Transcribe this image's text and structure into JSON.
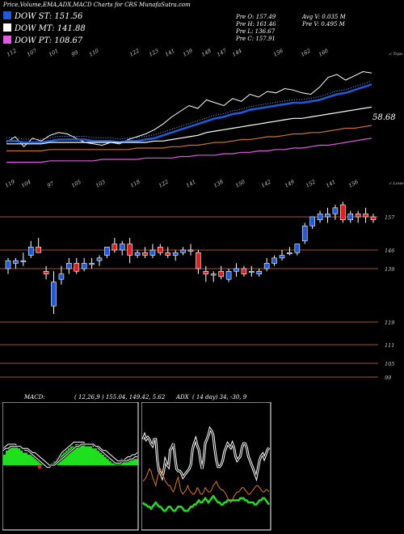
{
  "header": {
    "title": "Price,Volume,EMA,ADX,MACD Charts for CR",
    "site": "S MunafaSutra.com"
  },
  "legend": [
    {
      "label": "DOW ST: 151.56",
      "color": "#1f5bd6"
    },
    {
      "label": "DOW MT: 141.88",
      "color": "#ffffff"
    },
    {
      "label": "DOW PT: 108.67",
      "color": "#e05be0"
    }
  ],
  "ohlc": {
    "open": "Pre   O: 157.49",
    "high": "Pre   H: 161.46",
    "low": "Pre   L: 136.67",
    "close": "Pre   C: 157.91",
    "avg_volume": "Avg V: 0.035 M",
    "prev_volume": "Pre   V: 0.495 M"
  },
  "ema_panel": {
    "top_labels": [
      "112",
      "107",
      "101",
      "99",
      "110",
      "122",
      "123",
      "141",
      "139",
      "148",
      "147",
      "144",
      "156",
      "162",
      "160"
    ],
    "bottom_labels": [
      "119",
      "104",
      "97",
      "105",
      "103",
      "118",
      "122",
      "141",
      "138",
      "150",
      "142",
      "149",
      "152",
      "141",
      "156"
    ],
    "value_label": "58.68",
    "corner_top": "c Tops",
    "corner_bottom": "c Lows"
  },
  "price_panel": {
    "level_labels": [
      "157",
      "146",
      "139",
      "119",
      "111",
      "105",
      "99"
    ]
  },
  "macd": {
    "label": "MACD:",
    "params": "( 12,26,9 ) 155.04,  149.42, 5.62"
  },
  "adx": {
    "label": "ADX",
    "params": "( 14  day) 34,  -30,  9"
  },
  "chart_data": [
    {
      "type": "line",
      "title": "EMA",
      "series": [
        {
          "name": "price",
          "color": "#ffffff",
          "values": [
            134,
            138,
            131,
            137,
            135,
            139,
            141,
            140,
            137,
            134,
            133,
            132,
            134,
            133,
            136,
            138,
            140,
            143,
            147,
            152,
            156,
            160,
            158,
            164,
            162,
            160,
            165,
            163,
            168,
            166,
            170,
            169,
            172,
            171,
            169,
            168,
            173,
            180,
            182,
            178,
            181,
            184,
            183
          ]
        },
        {
          "name": "EMA short",
          "color": "#1f5bd6",
          "values": [
            135,
            135,
            134,
            134,
            134,
            135,
            136,
            136,
            136,
            136,
            135,
            135,
            135,
            134,
            135,
            135,
            136,
            137,
            139,
            141,
            143,
            145,
            147,
            149,
            151,
            152,
            154,
            155,
            157,
            158,
            159,
            160,
            161,
            162,
            162,
            163,
            164,
            166,
            168,
            169,
            171,
            173,
            175
          ]
        },
        {
          "name": "EMA mid",
          "color": "#ffffff",
          "values": [
            133,
            133,
            133,
            133,
            133,
            134,
            134,
            134,
            134,
            134,
            134,
            134,
            134,
            134,
            134,
            134,
            134,
            135,
            135,
            136,
            137,
            138,
            139,
            141,
            142,
            143,
            144,
            145,
            146,
            147,
            148,
            149,
            150,
            151,
            151,
            152,
            153,
            154,
            155,
            156,
            157,
            158,
            159
          ]
        },
        {
          "name": "EMA long",
          "color": "#c8703a",
          "values": [
            128,
            128,
            128,
            128,
            128,
            129,
            129,
            129,
            129,
            129,
            129,
            129,
            129,
            129,
            129,
            130,
            130,
            130,
            130,
            131,
            131,
            132,
            132,
            133,
            134,
            134,
            135,
            136,
            136,
            137,
            138,
            138,
            139,
            140,
            140,
            141,
            141,
            142,
            143,
            144,
            144,
            145,
            146
          ]
        },
        {
          "name": "EMA longest",
          "color": "#e05be0",
          "values": [
            120,
            120,
            120,
            120,
            120,
            121,
            121,
            121,
            121,
            121,
            121,
            122,
            122,
            122,
            122,
            122,
            123,
            123,
            123,
            123,
            124,
            124,
            125,
            125,
            125,
            126,
            126,
            127,
            127,
            128,
            128,
            129,
            129,
            130,
            130,
            131,
            132,
            132,
            133,
            134,
            135,
            136,
            137
          ]
        }
      ]
    },
    {
      "type": "candlestick",
      "title": "Price",
      "ylim": [
        97,
        166
      ],
      "candles": [
        {
          "o": 139,
          "h": 143,
          "l": 137,
          "c": 142
        },
        {
          "o": 141,
          "h": 143,
          "l": 139,
          "c": 142
        },
        {
          "o": 142,
          "h": 145,
          "l": 140,
          "c": 142
        },
        {
          "o": 144,
          "h": 149,
          "l": 143,
          "c": 147
        },
        {
          "o": 147,
          "h": 150,
          "l": 145,
          "c": 145
        },
        {
          "o": 138,
          "h": 140,
          "l": 135,
          "c": 137
        },
        {
          "o": 125,
          "h": 138,
          "l": 122,
          "c": 134
        },
        {
          "o": 135,
          "h": 140,
          "l": 133,
          "c": 137
        },
        {
          "o": 139,
          "h": 143,
          "l": 137,
          "c": 141
        },
        {
          "o": 141,
          "h": 143,
          "l": 137,
          "c": 138
        },
        {
          "o": 139,
          "h": 143,
          "l": 138,
          "c": 141
        },
        {
          "o": 141,
          "h": 143,
          "l": 139,
          "c": 141
        },
        {
          "o": 142,
          "h": 144,
          "l": 140,
          "c": 143
        },
        {
          "o": 144,
          "h": 147,
          "l": 143,
          "c": 147
        },
        {
          "o": 148,
          "h": 150,
          "l": 145,
          "c": 146
        },
        {
          "o": 146,
          "h": 149,
          "l": 144,
          "c": 148
        },
        {
          "o": 148,
          "h": 150,
          "l": 141,
          "c": 144
        },
        {
          "o": 144,
          "h": 146,
          "l": 143,
          "c": 145
        },
        {
          "o": 145,
          "h": 147,
          "l": 143,
          "c": 144
        },
        {
          "o": 144,
          "h": 148,
          "l": 143,
          "c": 146
        },
        {
          "o": 147,
          "h": 148,
          "l": 144,
          "c": 145
        },
        {
          "o": 145,
          "h": 147,
          "l": 143,
          "c": 144
        },
        {
          "o": 144,
          "h": 146,
          "l": 142,
          "c": 145
        },
        {
          "o": 145,
          "h": 147,
          "l": 144,
          "c": 146
        },
        {
          "o": 146,
          "h": 148,
          "l": 144,
          "c": 146
        },
        {
          "o": 145,
          "h": 146,
          "l": 137,
          "c": 139
        },
        {
          "o": 138,
          "h": 140,
          "l": 134,
          "c": 137
        },
        {
          "o": 137,
          "h": 138,
          "l": 134,
          "c": 137
        },
        {
          "o": 138,
          "h": 140,
          "l": 135,
          "c": 136
        },
        {
          "o": 135,
          "h": 139,
          "l": 134,
          "c": 138
        },
        {
          "o": 138,
          "h": 141,
          "l": 136,
          "c": 139
        },
        {
          "o": 139,
          "h": 140,
          "l": 136,
          "c": 137
        },
        {
          "o": 138,
          "h": 140,
          "l": 136,
          "c": 138
        },
        {
          "o": 137,
          "h": 139,
          "l": 136,
          "c": 138
        },
        {
          "o": 139,
          "h": 143,
          "l": 138,
          "c": 141
        },
        {
          "o": 141,
          "h": 144,
          "l": 140,
          "c": 143
        },
        {
          "o": 143,
          "h": 146,
          "l": 142,
          "c": 144
        },
        {
          "o": 145,
          "h": 147,
          "l": 144,
          "c": 145
        },
        {
          "o": 145,
          "h": 148,
          "l": 144,
          "c": 148
        },
        {
          "o": 149,
          "h": 155,
          "l": 148,
          "c": 154
        },
        {
          "o": 154,
          "h": 157,
          "l": 153,
          "c": 157
        },
        {
          "o": 156,
          "h": 159,
          "l": 155,
          "c": 158
        },
        {
          "o": 157,
          "h": 160,
          "l": 155,
          "c": 158
        },
        {
          "o": 158,
          "h": 161,
          "l": 156,
          "c": 160
        },
        {
          "o": 161,
          "h": 162,
          "l": 155,
          "c": 156
        },
        {
          "o": 156,
          "h": 159,
          "l": 155,
          "c": 158
        },
        {
          "o": 158,
          "h": 159,
          "l": 155,
          "c": 157
        },
        {
          "o": 158,
          "h": 160,
          "l": 155,
          "c": 157
        },
        {
          "o": 157,
          "h": 158,
          "l": 155,
          "c": 156
        }
      ],
      "levels": [
        157,
        146,
        139,
        119,
        111,
        105,
        99
      ]
    },
    {
      "type": "bar",
      "title": "MACD",
      "values": [
        5,
        7,
        8,
        9,
        9,
        9,
        8,
        7,
        6,
        6,
        5,
        5,
        4,
        3,
        2,
        1,
        1,
        0,
        0,
        0,
        1,
        2,
        3,
        4,
        5,
        6,
        7,
        8,
        9,
        9,
        10,
        10,
        10,
        10,
        9,
        9,
        9,
        8,
        8,
        7,
        6,
        5,
        4,
        3,
        2,
        1,
        1,
        1,
        2,
        3,
        3,
        3,
        3,
        3,
        3,
        3
      ],
      "macd_line": [
        8,
        9,
        10,
        10,
        10,
        10,
        9,
        9,
        8,
        7,
        7,
        6,
        5,
        4,
        3,
        2,
        1,
        0,
        -1,
        -1,
        0,
        1,
        2,
        4,
        6,
        7,
        8,
        9,
        10,
        11,
        11,
        11,
        11,
        11,
        10,
        10,
        10,
        9,
        9,
        8,
        7,
        6,
        5,
        4,
        3,
        2,
        1,
        1,
        1,
        2,
        3,
        4,
        4,
        5,
        5,
        6
      ],
      "signal_line": [
        7,
        8,
        8,
        9,
        9,
        9,
        9,
        9,
        8,
        8,
        8,
        7,
        6,
        6,
        5,
        4,
        3,
        2,
        1,
        0,
        0,
        0,
        1,
        2,
        3,
        4,
        5,
        6,
        7,
        8,
        9,
        9,
        10,
        10,
        10,
        10,
        10,
        10,
        9,
        9,
        8,
        7,
        7,
        6,
        5,
        4,
        3,
        2,
        2,
        2,
        2,
        2,
        3,
        3,
        4,
        4
      ]
    },
    {
      "type": "line",
      "title": "ADX",
      "series": [
        {
          "name": "DI+",
          "color": "#ffffff",
          "values": [
            40,
            42,
            40,
            41,
            40,
            38,
            37,
            40,
            40,
            30,
            25,
            24,
            22,
            25,
            30,
            28,
            27,
            35,
            36,
            38,
            32,
            26,
            25,
            25,
            24,
            22,
            23,
            24,
            25,
            26,
            28,
            35,
            38,
            40,
            37,
            35,
            30,
            26,
            30,
            38,
            40,
            42,
            45,
            44,
            42,
            35,
            30,
            27,
            27,
            28,
            30,
            34,
            36,
            38,
            37,
            36,
            38,
            36,
            32,
            30,
            31,
            32,
            36,
            38,
            38,
            36,
            32,
            30,
            28,
            26,
            24,
            22,
            26,
            30,
            32,
            33,
            31,
            33,
            35,
            36
          ]
        },
        {
          "name": "DI-",
          "color": "#e07820",
          "values": [
            20,
            21,
            22,
            24,
            26,
            25,
            22,
            20,
            18,
            22,
            24,
            26,
            24,
            22,
            20,
            19,
            18,
            18,
            16,
            15,
            17,
            20,
            22,
            18,
            15,
            14,
            15,
            16,
            18,
            16,
            15,
            14,
            14,
            15,
            17,
            16,
            14,
            14,
            15,
            17,
            16,
            15,
            15,
            16,
            18,
            19,
            20,
            18,
            17,
            16,
            16,
            15,
            14,
            12,
            11,
            10,
            11,
            13,
            14,
            15,
            15,
            16,
            17,
            17,
            16,
            15,
            14,
            14,
            15,
            16,
            17,
            18,
            18,
            17,
            16,
            15,
            15,
            16,
            16,
            15
          ]
        },
        {
          "name": "ADX",
          "color": "#22dd22",
          "values": [
            10,
            9,
            9,
            8,
            8,
            7,
            8,
            9,
            10,
            9,
            8,
            8,
            7,
            6,
            6,
            7,
            8,
            8,
            7,
            6,
            6,
            7,
            8,
            8,
            8,
            7,
            6,
            6,
            6,
            7,
            8,
            8,
            9,
            9,
            10,
            11,
            10,
            10,
            11,
            12,
            11,
            10,
            11,
            12,
            13,
            12,
            11,
            10,
            10,
            9,
            9,
            10,
            10,
            11,
            11,
            11,
            11,
            11,
            11,
            11,
            11,
            12,
            12,
            12,
            11,
            11,
            10,
            10,
            10,
            10,
            9,
            9,
            10,
            11,
            11,
            12,
            12,
            11,
            10,
            9
          ]
        }
      ]
    }
  ]
}
